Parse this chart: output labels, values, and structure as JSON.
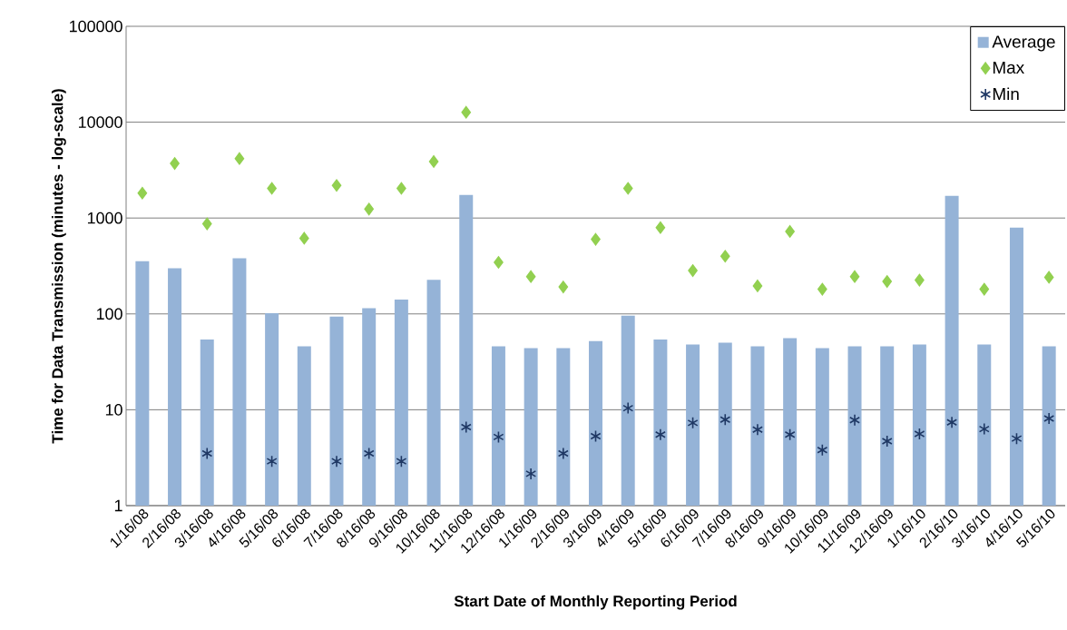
{
  "chart_data": {
    "type": "bar",
    "xlabel": "Start Date of Monthly Reporting Period",
    "ylabel": "Time for Data Transmission (minutes - log-scale)",
    "categories": [
      "1/16/08",
      "2/16/08",
      "3/16/08",
      "4/16/08",
      "5/16/08",
      "6/16/08",
      "7/16/08",
      "8/16/08",
      "9/16/08",
      "10/16/08",
      "11/16/08",
      "12/16/08",
      "1/16/09",
      "2/16/09",
      "3/16/09",
      "4/16/09",
      "5/16/09",
      "6/16/09",
      "7/16/09",
      "8/16/09",
      "9/16/09",
      "10/16/09",
      "11/16/09",
      "12/16/09",
      "1/16/10",
      "2/16/10",
      "3/16/10",
      "4/16/10",
      "5/16/10"
    ],
    "series": [
      {
        "name": "Average",
        "color": "#95b3d7",
        "values": [
          355,
          300,
          54,
          380,
          102,
          46,
          94,
          115,
          141,
          227,
          1740,
          46,
          44,
          44,
          52,
          96,
          54,
          48,
          50,
          46,
          56,
          44,
          46,
          46,
          48,
          1700,
          48,
          795,
          46
        ]
      },
      {
        "name": "Max",
        "type": "scatter",
        "marker": "diamond",
        "color": "#92d050",
        "values": [
          1820,
          3710,
          870,
          4170,
          2040,
          616,
          2190,
          1240,
          2040,
          3890,
          12700,
          345,
          245,
          191,
          600,
          2040,
          795,
          283,
          400,
          196,
          725,
          181,
          245,
          218,
          225,
          null,
          181,
          null,
          241
        ]
      },
      {
        "name": "Min",
        "type": "scatter",
        "marker": "cross",
        "color": "#1f3864",
        "values": [
          null,
          null,
          3.5,
          null,
          2.9,
          null,
          2.9,
          3.5,
          2.9,
          null,
          6.6,
          5.2,
          2.15,
          3.5,
          5.3,
          10.4,
          5.5,
          7.3,
          7.9,
          6.2,
          5.5,
          3.8,
          7.8,
          4.7,
          5.6,
          7.4,
          6.3,
          5.0,
          8.1
        ]
      }
    ],
    "log": "y",
    "ylim": [
      1,
      100000
    ],
    "yticks": [
      1,
      10,
      100,
      1000,
      10000,
      100000
    ],
    "grid": "y",
    "legend": "top right"
  }
}
